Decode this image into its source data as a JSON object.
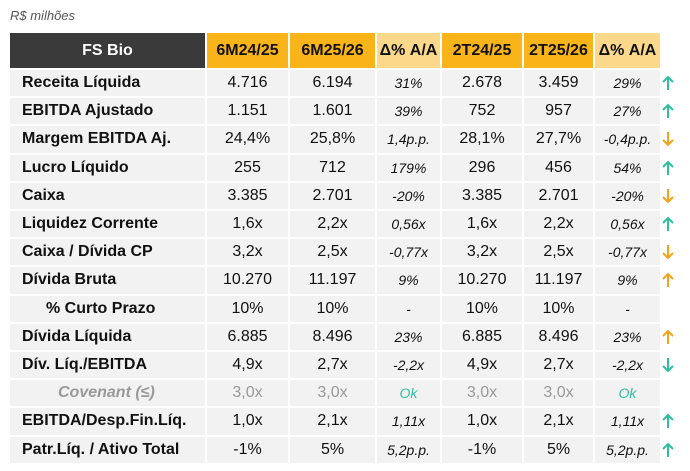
{
  "unit_note": "R$ milhões",
  "header": [
    "FS Bio",
    "6M24/25",
    "6M25/26",
    "Δ% A/A",
    "2T24/25",
    "2T25/26",
    "Δ% A/A"
  ],
  "rows": [
    {
      "label": "Receita Líquida",
      "cells": [
        "4.716",
        "6.194",
        "31%",
        "2.678",
        "3.459",
        "29%"
      ],
      "arrow": "up",
      "arrow_color": "#2fbf9f"
    },
    {
      "label": "EBITDA Ajustado",
      "cells": [
        "1.151",
        "1.601",
        "39%",
        "752",
        "957",
        "27%"
      ],
      "arrow": "up",
      "arrow_color": "#2fbf9f"
    },
    {
      "label": "Margem EBITDA Aj.",
      "cells": [
        "24,4%",
        "25,8%",
        "1,4p.p.",
        "28,1%",
        "27,7%",
        "-0,4p.p."
      ],
      "arrow": "down",
      "arrow_color": "#f5a31a"
    },
    {
      "label": "Lucro Líquido",
      "cells": [
        "255",
        "712",
        "179%",
        "296",
        "456",
        "54%"
      ],
      "arrow": "up",
      "arrow_color": "#2fbf9f"
    },
    {
      "label": "Caixa",
      "cells": [
        "3.385",
        "2.701",
        "-20%",
        "3.385",
        "2.701",
        "-20%"
      ],
      "arrow": "down",
      "arrow_color": "#f5a31a"
    },
    {
      "label": "Liquidez Corrente",
      "cells": [
        "1,6x",
        "2,2x",
        "0,56x",
        "1,6x",
        "2,2x",
        "0,56x"
      ],
      "arrow": "up",
      "arrow_color": "#2fbf9f"
    },
    {
      "label": "Caixa / Dívida CP",
      "cells": [
        "3,2x",
        "2,5x",
        "-0,77x",
        "3,2x",
        "2,5x",
        "-0,77x"
      ],
      "arrow": "down",
      "arrow_color": "#f5a31a"
    },
    {
      "label": "Dívida Bruta",
      "cells": [
        "10.270",
        "11.197",
        "9%",
        "10.270",
        "11.197",
        "9%"
      ],
      "arrow": "up",
      "arrow_color": "#f5a31a"
    },
    {
      "label": "% Curto Prazo",
      "cells": [
        "10%",
        "10%",
        "-",
        "10%",
        "10%",
        "-"
      ],
      "style": "sub"
    },
    {
      "label": "Dívida Líquida",
      "cells": [
        "6.885",
        "8.496",
        "23%",
        "6.885",
        "8.496",
        "23%"
      ],
      "arrow": "up",
      "arrow_color": "#f5a31a"
    },
    {
      "label": "Dív. Líq./EBITDA",
      "cells": [
        "4,9x",
        "2,7x",
        "-2,2x",
        "4,9x",
        "2,7x",
        "-2,2x"
      ],
      "arrow": "down",
      "arrow_color": "#2fbf9f"
    },
    {
      "label": "Covenant (≤)",
      "cells": [
        "3,0x",
        "3,0x",
        "Ok",
        "3,0x",
        "3,0x",
        "Ok"
      ],
      "style": "muted"
    },
    {
      "label": "EBITDA/Desp.Fin.Líq.",
      "cells": [
        "1,0x",
        "2,1x",
        "1,11x",
        "1,0x",
        "2,1x",
        "1,11x"
      ],
      "arrow": "up",
      "arrow_color": "#2fbf9f"
    },
    {
      "label": "Patr.Líq. / Ativo Total",
      "cells": [
        "-1%",
        "5%",
        "5,2p.p.",
        "-1%",
        "5%",
        "5,2p.p."
      ],
      "arrow": "up",
      "arrow_color": "#2fbf9f"
    }
  ]
}
